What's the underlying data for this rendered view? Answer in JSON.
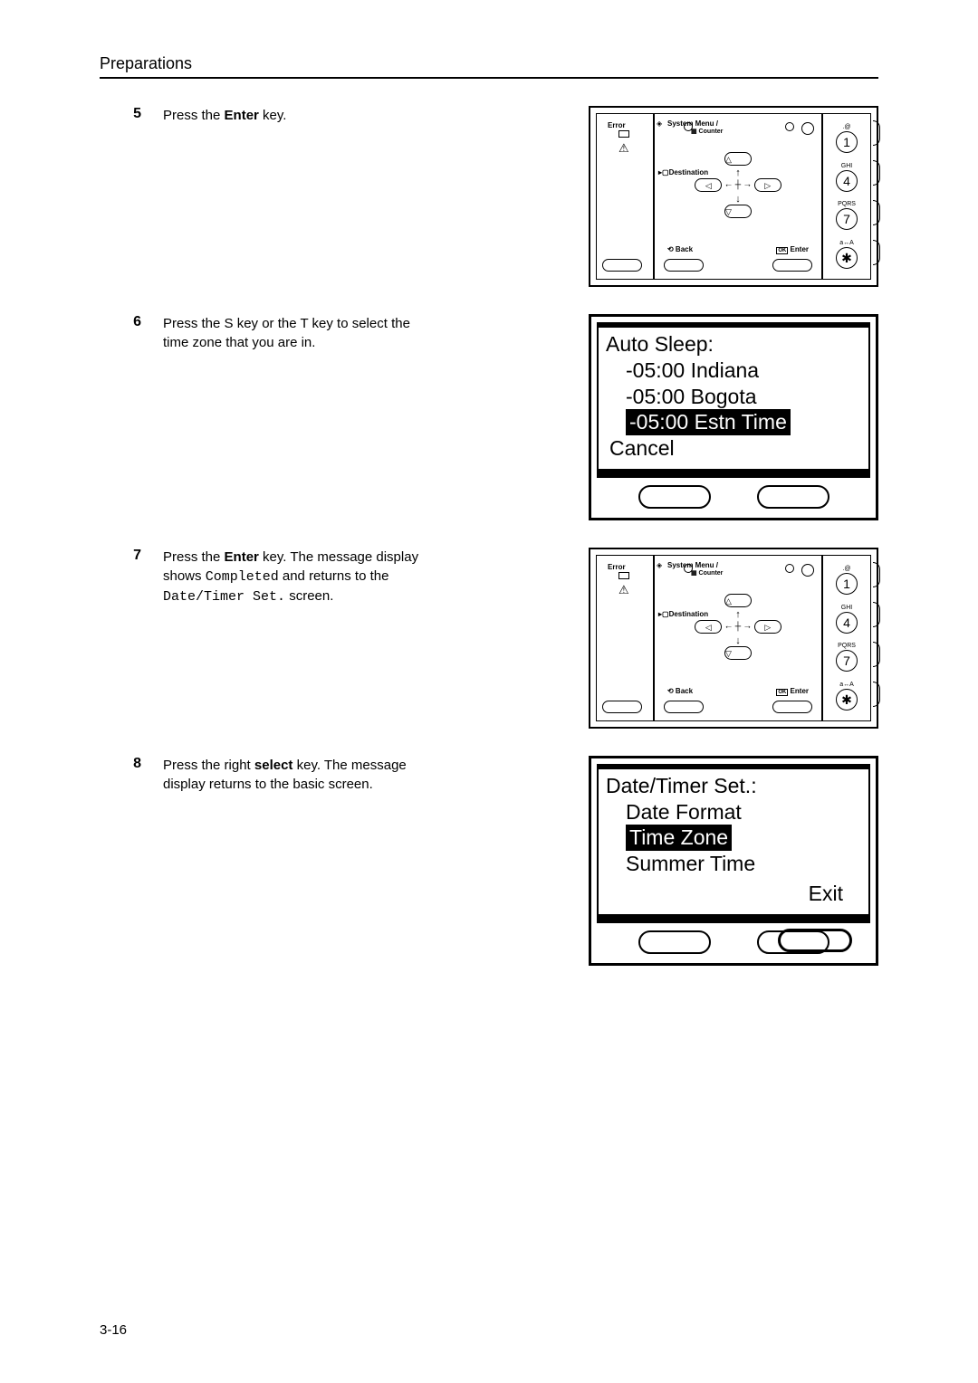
{
  "section_title": "Preparations",
  "page_number": "3-16",
  "steps": [
    {
      "num": "5",
      "text_parts": [
        {
          "t": "Press the ",
          "style": ""
        },
        {
          "t": "Enter",
          "style": "bold"
        },
        {
          "t": " key.",
          "style": ""
        }
      ],
      "diagram": "panel"
    },
    {
      "num": "6",
      "text_parts": [
        {
          "t": "Press the ",
          "style": ""
        },
        {
          "t": "S",
          "style": ""
        },
        {
          "t": " key or the ",
          "style": ""
        },
        {
          "t": "T",
          "style": ""
        },
        {
          "t": " key to select the time zone that you are in.",
          "style": ""
        }
      ],
      "diagram": "lcd1"
    },
    {
      "num": "7",
      "text_parts": [
        {
          "t": "Press the ",
          "style": ""
        },
        {
          "t": "Enter",
          "style": "bold"
        },
        {
          "t": " key. The message display shows ",
          "style": ""
        },
        {
          "t": "Completed",
          "style": "mono"
        },
        {
          "t": " and returns to the ",
          "style": ""
        },
        {
          "t": "Date/Timer Set.",
          "style": "mono"
        },
        {
          "t": " screen.",
          "style": ""
        }
      ],
      "diagram": "panel"
    },
    {
      "num": "8",
      "text_parts": [
        {
          "t": "Press the right ",
          "style": ""
        },
        {
          "t": "select",
          "style": "bold"
        },
        {
          "t": " key. The message display returns to the basic screen.",
          "style": ""
        }
      ],
      "diagram": "lcd2"
    }
  ],
  "panel": {
    "error_label": "Error",
    "system_menu": "System Menu /",
    "counter_label": "Counter",
    "destination": "Destination",
    "back": "Back",
    "enter": "Enter",
    "keys": [
      {
        "sup": ".@",
        "val": "1"
      },
      {
        "sup": "GHI",
        "val": "4"
      },
      {
        "sup": "PQRS",
        "val": "7"
      },
      {
        "sup": "a↔A",
        "val": "✱"
      }
    ]
  },
  "lcd1": {
    "title": "Auto Sleep:",
    "lines": [
      {
        "text": "-05:00 Indiana",
        "hl": false
      },
      {
        "text": "-05:00 Bogota",
        "hl": false
      },
      {
        "text": "-05:00 Estn Time",
        "hl": true
      }
    ],
    "footer": "Cancel",
    "button_highlight": false
  },
  "lcd2": {
    "title": "Date/Timer Set.:",
    "lines": [
      {
        "text": "Date Format",
        "hl": false
      },
      {
        "text": "Time Zone",
        "hl": true
      },
      {
        "text": "Summer Time",
        "hl": false
      }
    ],
    "footer": "Exit",
    "button_highlight": true
  }
}
